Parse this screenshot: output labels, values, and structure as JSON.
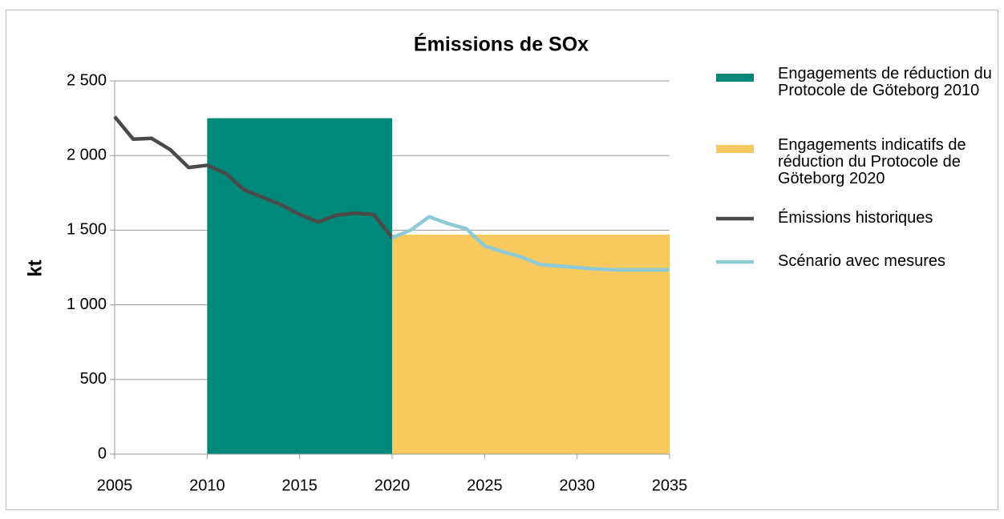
{
  "chart_data": {
    "type": "bar-line",
    "title": "Émissions de SOx",
    "y_label": "kt",
    "xlim": [
      2005,
      2035
    ],
    "xticks": [
      2005,
      2010,
      2015,
      2020,
      2025,
      2030,
      2035
    ],
    "ylim": [
      0,
      2500
    ],
    "yticks": [
      0,
      500,
      {
        "value": 1000,
        "label": "1 000"
      },
      {
        "value": 1500,
        "label": "1 500"
      },
      {
        "value": 2000,
        "label": "2 000"
      },
      {
        "value": 2500,
        "label": "2 500"
      }
    ],
    "grid": true,
    "bars": [
      {
        "name": "Engagements de réduction du Protocole de Göteborg 2010",
        "color": "#00897b",
        "x0": 2010,
        "x1": 2020,
        "value": 2250
      },
      {
        "name": "Engagements indicatifs de réduction du Protocole de Göteborg 2020",
        "color": "#f7c95f",
        "x0": 2020,
        "x1": 2035,
        "value": 1470
      }
    ],
    "series": [
      {
        "name": "Émissions historiques",
        "color": "#4a4a4a",
        "x": [
          2005,
          2006,
          2007,
          2008,
          2009,
          2010,
          2011,
          2012,
          2013,
          2014,
          2015,
          2016,
          2017,
          2018,
          2019,
          2020
        ],
        "values": [
          2260,
          2110,
          2115,
          2040,
          1920,
          1935,
          1880,
          1770,
          1720,
          1670,
          1605,
          1555,
          1600,
          1615,
          1605,
          1450
        ]
      },
      {
        "name": "Scénario avec mesures",
        "color": "#8ecbd6",
        "x": [
          2020,
          2021,
          2022,
          2023,
          2024,
          2025,
          2026,
          2027,
          2028,
          2029,
          2030,
          2031,
          2032,
          2033,
          2034,
          2035
        ],
        "values": [
          1450,
          1500,
          1590,
          1545,
          1510,
          1395,
          1355,
          1320,
          1270,
          1260,
          1250,
          1240,
          1235,
          1235,
          1235,
          1235
        ]
      }
    ]
  }
}
